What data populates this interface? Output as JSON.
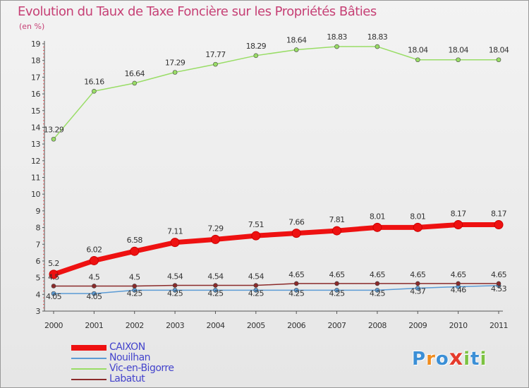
{
  "title": "Evolution du Taux de Taxe Foncière sur les Propriétés Bâties",
  "unit_label": "(en %)",
  "logo": {
    "text": "Proxiti",
    "letters": [
      "P",
      "r",
      "o",
      "x",
      "i",
      "t",
      "i"
    ],
    "colors": [
      "#3b8fd6",
      "#f08c1e",
      "#3b8fd6",
      "#e53b2c",
      "#7cc242",
      "#3b8fd6",
      "#7cc242"
    ]
  },
  "chart_data": {
    "type": "line",
    "x": [
      "2000",
      "2001",
      "2002",
      "2003",
      "2004",
      "2005",
      "2006",
      "2007",
      "2008",
      "2009",
      "2010",
      "2011"
    ],
    "ylim": [
      3,
      19
    ],
    "yticks": [
      3,
      4,
      5,
      6,
      7,
      8,
      9,
      10,
      11,
      12,
      13,
      14,
      15,
      16,
      17,
      18,
      19
    ],
    "grid": false,
    "legend_position": "bottom-left",
    "series": [
      {
        "name": "CAIXON",
        "color": "#ee1111",
        "values": [
          5.2,
          6.02,
          6.58,
          7.11,
          7.29,
          7.51,
          7.66,
          7.81,
          8.01,
          8.01,
          8.17,
          8.17
        ],
        "labels": [
          "5.2",
          "6.02",
          "6.58",
          "7.11",
          "7.29",
          "7.51",
          "7.66",
          "7.81",
          "8.01",
          "8.01",
          "8.17",
          "8.17"
        ]
      },
      {
        "name": "Nouilhan",
        "color": "#5b9bd5",
        "values": [
          4.05,
          4.05,
          4.25,
          4.25,
          4.25,
          4.25,
          4.25,
          4.25,
          4.25,
          4.37,
          4.46,
          4.53
        ],
        "labels": [
          "4.05",
          "4.05",
          "4.25",
          "4.25",
          "4.25",
          "4.25",
          "4.25",
          "4.25",
          "4.25",
          "4.37",
          "4.46",
          "4.53"
        ]
      },
      {
        "name": "Vic-en-Bigorre",
        "color": "#99dd66",
        "values": [
          13.29,
          16.16,
          16.64,
          17.29,
          17.77,
          18.29,
          18.64,
          18.83,
          18.83,
          18.04,
          18.04,
          18.04
        ],
        "labels": [
          "13.29",
          "16.16",
          "16.64",
          "17.29",
          "17.77",
          "18.29",
          "18.64",
          "18.83",
          "18.83",
          "18.04",
          "18.04",
          "18.04"
        ]
      },
      {
        "name": "Labatut",
        "color": "#8b2a2a",
        "values": [
          4.5,
          4.5,
          4.5,
          4.54,
          4.54,
          4.54,
          4.65,
          4.65,
          4.65,
          4.65,
          4.65,
          4.65
        ],
        "labels": [
          "4.5",
          "4.5",
          "4.5",
          "4.54",
          "4.54",
          "4.54",
          "4.65",
          "4.65",
          "4.65",
          "4.65",
          "4.65",
          "4.65"
        ]
      }
    ]
  }
}
